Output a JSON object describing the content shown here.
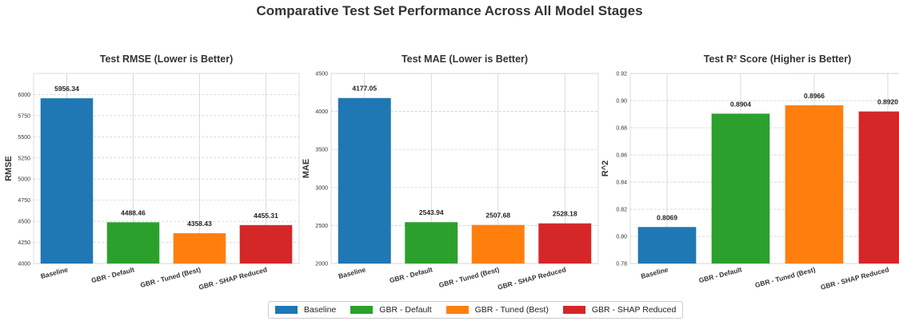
{
  "suptitle": "Comparative Test Set Performance Across All Model Stages",
  "legend": [
    {
      "label": "Baseline",
      "color": "#1f77b4"
    },
    {
      "label": "GBR - Default",
      "color": "#2ca02c"
    },
    {
      "label": "GBR - Tuned (Best)",
      "color": "#ff7f0e"
    },
    {
      "label": "GBR - SHAP Reduced",
      "color": "#d62728"
    }
  ],
  "chart_data": [
    {
      "type": "bar",
      "title": "Test RMSE (Lower is Better)",
      "ylabel": "RMSE",
      "xlabel": "",
      "categories": [
        "Baseline",
        "GBR - Default",
        "GBR - Tuned (Best)",
        "GBR - SHAP Reduced"
      ],
      "values": [
        5956.34,
        4488.46,
        4358.43,
        4455.31
      ],
      "value_labels": [
        "5956.34",
        "4488.46",
        "4358.43",
        "4455.31"
      ],
      "colors": [
        "#1f77b4",
        "#2ca02c",
        "#ff7f0e",
        "#d62728"
      ],
      "ylim": [
        4000,
        6250
      ],
      "yticks": [
        4000,
        4250,
        4500,
        4750,
        5000,
        5250,
        5500,
        5750,
        6000
      ],
      "ytick_labels": [
        "4000",
        "4250",
        "4500",
        "4750",
        "5000",
        "5250",
        "5500",
        "5750",
        "6000"
      ],
      "grid": true
    },
    {
      "type": "bar",
      "title": "Test MAE (Lower is Better)",
      "ylabel": "MAE",
      "xlabel": "",
      "categories": [
        "Baseline",
        "GBR - Default",
        "GBR - Tuned (Best)",
        "GBR - SHAP Reduced"
      ],
      "values": [
        4177.05,
        2543.94,
        2507.68,
        2528.18
      ],
      "value_labels": [
        "4177.05",
        "2543.94",
        "2507.68",
        "2528.18"
      ],
      "colors": [
        "#1f77b4",
        "#2ca02c",
        "#ff7f0e",
        "#d62728"
      ],
      "ylim": [
        2000,
        4500
      ],
      "yticks": [
        2000,
        2500,
        3000,
        3500,
        4000,
        4500
      ],
      "ytick_labels": [
        "2000",
        "2500",
        "3000",
        "3500",
        "4000",
        "4500"
      ],
      "grid": true
    },
    {
      "type": "bar",
      "title": "Test R² Score (Higher is Better)",
      "ylabel": "R^2",
      "xlabel": "",
      "categories": [
        "Baseline",
        "GBR - Default",
        "GBR - Tuned (Best)",
        "GBR - SHAP Reduced"
      ],
      "values": [
        0.8069,
        0.8904,
        0.8966,
        0.892
      ],
      "value_labels": [
        "0.8069",
        "0.8904",
        "0.8966",
        "0.8920"
      ],
      "colors": [
        "#1f77b4",
        "#2ca02c",
        "#ff7f0e",
        "#d62728"
      ],
      "ylim": [
        0.78,
        0.92
      ],
      "yticks": [
        0.78,
        0.8,
        0.82,
        0.84,
        0.86,
        0.88,
        0.9,
        0.92
      ],
      "ytick_labels": [
        "0.78",
        "0.80",
        "0.82",
        "0.84",
        "0.86",
        "0.88",
        "0.90",
        "0.92"
      ],
      "grid": true
    }
  ]
}
